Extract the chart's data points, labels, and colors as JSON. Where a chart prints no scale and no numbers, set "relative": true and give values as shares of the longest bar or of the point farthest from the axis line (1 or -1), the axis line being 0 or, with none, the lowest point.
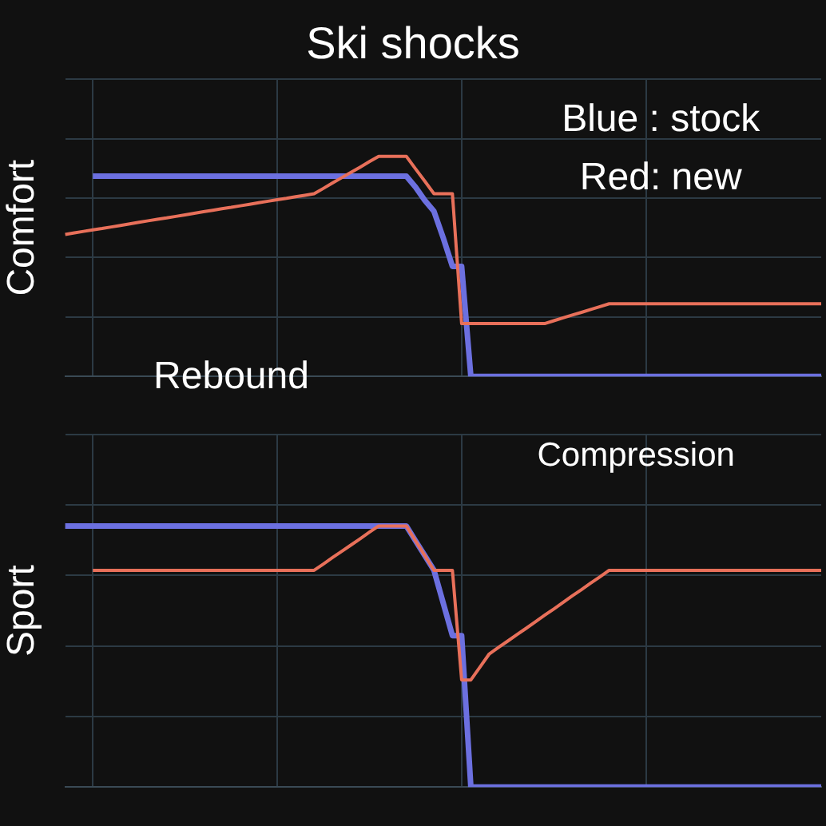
{
  "chart_data": [
    {
      "type": "line",
      "title": "Ski shocks",
      "ylabel": "Comfort",
      "relative": true,
      "grid": true,
      "legend": false,
      "marker": "none",
      "annotations": [
        "Blue : stock",
        "Red: new",
        "Rebound"
      ],
      "categories": [
        null,
        null,
        null,
        null,
        null,
        null,
        null,
        null,
        null,
        null,
        null,
        null,
        null,
        null,
        null,
        null,
        null,
        null,
        null,
        null,
        null,
        null,
        null,
        null,
        null,
        null,
        null,
        null,
        null,
        null,
        null,
        null,
        null,
        null,
        null,
        null,
        null,
        null,
        null,
        null,
        null,
        null,
        null,
        null,
        null,
        null,
        null,
        null,
        null,
        null,
        null,
        null,
        null,
        null,
        null,
        null,
        null,
        null,
        null,
        null,
        null,
        null,
        null,
        null,
        null,
        null,
        null,
        null,
        null,
        null,
        null,
        null,
        null,
        null,
        null,
        null,
        null,
        null,
        null,
        null,
        null,
        null,
        null
      ],
      "series": [
        {
          "color": "#6c70e0",
          "values": [
            null,
            null,
            null,
            0.91,
            0.91,
            0.91,
            0.91,
            0.91,
            0.91,
            0.91,
            0.91,
            0.91,
            0.91,
            0.91,
            0.91,
            0.91,
            0.91,
            0.91,
            0.91,
            0.91,
            0.91,
            0.91,
            0.91,
            0.91,
            0.91,
            0.91,
            0.91,
            0.91,
            0.91,
            0.91,
            0.91,
            0.91,
            0.91,
            0.91,
            0.91,
            0.91,
            0.91,
            0.91,
            0.86,
            0.8,
            0.75,
            0.63,
            0.5,
            0.5,
            0,
            0,
            0,
            0,
            0,
            0,
            0,
            0,
            0,
            0,
            0,
            0,
            0,
            0,
            0,
            0,
            0,
            0,
            0,
            0,
            0,
            0,
            0,
            0,
            0,
            0,
            0,
            0,
            0,
            0,
            0,
            0,
            0,
            0,
            0,
            0,
            0,
            0,
            0
          ]
        },
        {
          "color": "#e8705a",
          "values": [
            0.645,
            0.652,
            0.659,
            0.666,
            0.672,
            0.679,
            0.686,
            0.693,
            0.7,
            0.707,
            0.714,
            0.72,
            0.727,
            0.734,
            0.741,
            0.748,
            0.755,
            0.762,
            0.768,
            0.775,
            0.782,
            0.789,
            0.796,
            0.803,
            0.809,
            0.816,
            0.823,
            0.83,
            0.854,
            0.879,
            0.903,
            0.927,
            0.951,
            0.976,
            1,
            1,
            1,
            1,
            0.943,
            0.887,
            0.83,
            0.83,
            0.83,
            0.24,
            0.24,
            0.24,
            0.24,
            0.24,
            0.24,
            0.24,
            0.24,
            0.24,
            0.24,
            0.253,
            0.266,
            0.279,
            0.291,
            0.304,
            0.317,
            0.33,
            0.33,
            0.33,
            0.33,
            0.33,
            0.33,
            0.33,
            0.33,
            0.33,
            0.33,
            0.33,
            0.33,
            0.33,
            0.33,
            0.33,
            0.33,
            0.33,
            0.33,
            0.33,
            0.33,
            0.33,
            0.33,
            0.33,
            0.33
          ]
        }
      ]
    },
    {
      "type": "line",
      "ylabel": "Sport",
      "relative": true,
      "grid": true,
      "legend": false,
      "marker": "none",
      "annotations": [
        "Compression"
      ],
      "categories": [
        null,
        null,
        null,
        null,
        null,
        null,
        null,
        null,
        null,
        null,
        null,
        null,
        null,
        null,
        null,
        null,
        null,
        null,
        null,
        null,
        null,
        null,
        null,
        null,
        null,
        null,
        null,
        null,
        null,
        null,
        null,
        null,
        null,
        null,
        null,
        null,
        null,
        null,
        null,
        null,
        null,
        null,
        null,
        null,
        null,
        null,
        null,
        null,
        null,
        null,
        null,
        null,
        null,
        null,
        null,
        null,
        null,
        null,
        null,
        null,
        null,
        null,
        null,
        null,
        null,
        null,
        null,
        null,
        null,
        null,
        null,
        null,
        null,
        null,
        null,
        null,
        null,
        null,
        null,
        null,
        null,
        null,
        null
      ],
      "series": [
        {
          "color": "#6c70e0",
          "values": [
            1,
            1,
            1,
            1,
            1,
            1,
            1,
            1,
            1,
            1,
            1,
            1,
            1,
            1,
            1,
            1,
            1,
            1,
            1,
            1,
            1,
            1,
            1,
            1,
            1,
            1,
            1,
            1,
            1,
            1,
            1,
            1,
            1,
            1,
            1,
            1,
            1,
            1,
            0.943,
            0.887,
            0.83,
            0.705,
            0.58,
            0.58,
            0,
            0,
            0,
            0,
            0,
            0,
            0,
            0,
            0,
            0,
            0,
            0,
            0,
            0,
            0,
            0,
            0,
            0,
            0,
            0,
            0,
            0,
            0,
            0,
            0,
            0,
            0,
            0,
            0,
            0,
            0,
            0,
            0,
            0,
            0,
            0,
            0,
            0,
            0
          ]
        },
        {
          "color": "#e8705a",
          "values": [
            null,
            null,
            null,
            0.83,
            0.83,
            0.83,
            0.83,
            0.83,
            0.83,
            0.83,
            0.83,
            0.83,
            0.83,
            0.83,
            0.83,
            0.83,
            0.83,
            0.83,
            0.83,
            0.83,
            0.83,
            0.83,
            0.83,
            0.83,
            0.83,
            0.83,
            0.83,
            0.83,
            0.854,
            0.879,
            0.903,
            0.927,
            0.951,
            0.976,
            1,
            1,
            1,
            1,
            0.943,
            0.887,
            0.83,
            0.83,
            0.83,
            0.41,
            0.41,
            0.46,
            0.51,
            0.535,
            0.559,
            0.584,
            0.608,
            0.633,
            0.658,
            0.682,
            0.707,
            0.732,
            0.756,
            0.781,
            0.805,
            0.83,
            0.83,
            0.83,
            0.83,
            0.83,
            0.83,
            0.83,
            0.83,
            0.83,
            0.83,
            0.83,
            0.83,
            0.83,
            0.83,
            0.83,
            0.83,
            0.83,
            0.83,
            0.83,
            0.83,
            0.83,
            0.83,
            0.83,
            0.83
          ]
        }
      ]
    }
  ]
}
